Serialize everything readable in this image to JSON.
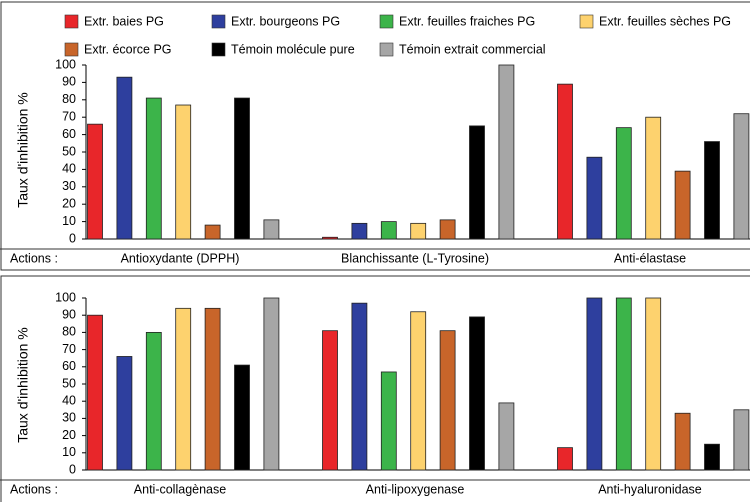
{
  "chart_data": [
    {
      "type": "bar",
      "ylabel": "Taux d'inhibition %",
      "x_label": "Actions :",
      "categories": [
        "Antioxydante (DPPH)",
        "Blanchissante (L-Tyrosine)",
        "Anti-élastase"
      ],
      "ylim": [
        0,
        100
      ],
      "yticks": [
        0,
        10,
        20,
        30,
        40,
        50,
        60,
        70,
        80,
        90,
        100
      ],
      "series": [
        {
          "name": "Extr. baies PG",
          "color": "#e8262a",
          "values": [
            66,
            1,
            89
          ]
        },
        {
          "name": "Extr. bourgeons  PG",
          "color": "#2e3f9e",
          "values": [
            93,
            9,
            47
          ]
        },
        {
          "name": "Extr. feuilles fraiches PG",
          "color": "#3cb44a",
          "values": [
            81,
            10,
            64
          ]
        },
        {
          "name": "Extr. feuilles sèches PG",
          "color": "#fdd26e",
          "values": [
            77,
            9,
            70
          ]
        },
        {
          "name": "Extr. écorce PG",
          "color": "#c8652a",
          "values": [
            8,
            11,
            39
          ]
        },
        {
          "name": "Témoin molécule pure",
          "color": "#000000",
          "values": [
            81,
            65,
            56
          ]
        },
        {
          "name": "Témoin extrait commercial",
          "color": "#a6a6a6",
          "values": [
            11,
            100,
            72
          ]
        }
      ]
    },
    {
      "type": "bar",
      "ylabel": "Taux d'inhibition %",
      "x_label": "Actions :",
      "categories": [
        "Anti-collagènase",
        "Anti-lipoxygenase",
        "Anti-hyaluronidase"
      ],
      "ylim": [
        0,
        100
      ],
      "yticks": [
        0,
        10,
        20,
        30,
        40,
        50,
        60,
        70,
        80,
        90,
        100
      ],
      "series": [
        {
          "color": "#e8262a",
          "values": [
            90,
            81,
            13
          ]
        },
        {
          "color": "#2e3f9e",
          "values": [
            66,
            97,
            100
          ]
        },
        {
          "color": "#3cb44a",
          "values": [
            80,
            57,
            100
          ]
        },
        {
          "color": "#fdd26e",
          "values": [
            94,
            92,
            100
          ]
        },
        {
          "color": "#c8652a",
          "values": [
            94,
            81,
            33
          ]
        },
        {
          "color": "#000000",
          "values": [
            61,
            89,
            15
          ]
        },
        {
          "color": "#a6a6a6",
          "values": [
            100,
            39,
            35
          ]
        }
      ]
    }
  ]
}
